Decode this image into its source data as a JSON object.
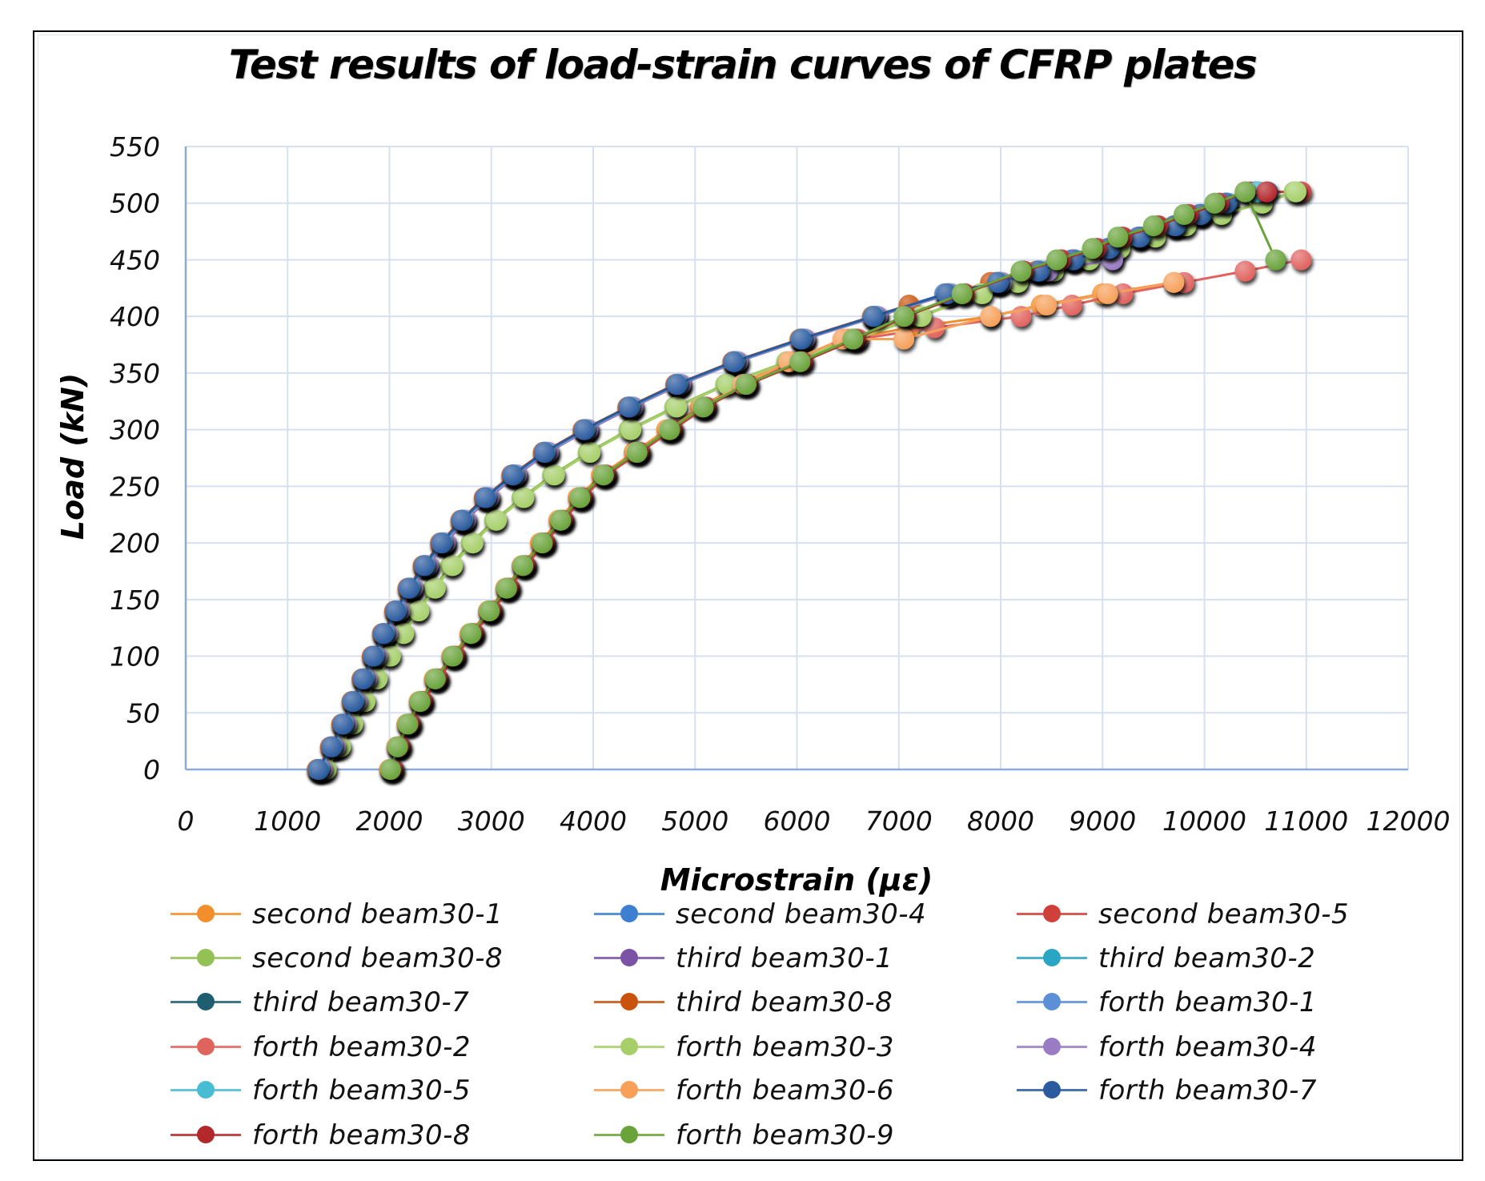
{
  "chart_data": {
    "type": "line",
    "title": "Test results of load-strain curves of CFRP plates",
    "xlabel": "Microstrain (με)",
    "ylabel": "Load (kN)",
    "xlim": [
      0,
      12000
    ],
    "ylim": [
      0,
      550
    ],
    "xticks": [
      0,
      1000,
      2000,
      3000,
      4000,
      5000,
      6000,
      7000,
      8000,
      9000,
      10000,
      11000,
      12000
    ],
    "yticks": [
      0,
      50,
      100,
      150,
      200,
      250,
      300,
      350,
      400,
      450,
      500,
      550
    ],
    "grid": true,
    "legend_position": "bottom",
    "markers": "circle",
    "series": [
      {
        "name": "second beam30-1",
        "color": "#f28e2b",
        "x": [
          2000,
          2070,
          2170,
          2290,
          2440,
          2610,
          2790,
          2970,
          3140,
          3300,
          3480,
          3660,
          3850,
          4080,
          4400,
          4720,
          5050,
          5450,
          5900,
          6500,
          7100,
          7900,
          8400,
          9000,
          9700
        ],
        "y": [
          0,
          20,
          40,
          60,
          80,
          100,
          120,
          140,
          160,
          180,
          200,
          220,
          240,
          260,
          280,
          300,
          320,
          340,
          360,
          380,
          390,
          400,
          410,
          420,
          430
        ]
      },
      {
        "name": "second beam30-4",
        "color": "#3d7fd1",
        "x": [
          1300,
          1430,
          1540,
          1640,
          1740,
          1840,
          1940,
          2060,
          2190,
          2340,
          2510,
          2710,
          2940,
          3210,
          3520,
          3910,
          4350,
          4820,
          5380,
          6040,
          6750,
          7450,
          7950,
          8350,
          8700,
          9050,
          9350,
          9700,
          9950,
          10200,
          10500
        ],
        "y": [
          0,
          20,
          40,
          60,
          80,
          100,
          120,
          140,
          160,
          180,
          200,
          220,
          240,
          260,
          280,
          300,
          320,
          340,
          360,
          380,
          400,
          420,
          430,
          440,
          450,
          460,
          470,
          480,
          490,
          500,
          510
        ]
      },
      {
        "name": "second beam30-5",
        "color": "#d0403b",
        "x": [
          2040,
          2110,
          2210,
          2330,
          2480,
          2650,
          2830,
          3010,
          3180,
          3340,
          3530,
          3710,
          3900,
          4130,
          4460,
          4780,
          5110,
          5520,
          6060,
          6580,
          7080,
          7650,
          8230,
          8600,
          8950,
          9200,
          9550,
          9850,
          10150,
          10450,
          10950
        ],
        "y": [
          0,
          20,
          40,
          60,
          80,
          100,
          120,
          140,
          160,
          180,
          200,
          220,
          240,
          260,
          280,
          300,
          320,
          340,
          360,
          380,
          400,
          420,
          440,
          450,
          460,
          470,
          480,
          490,
          500,
          510,
          510
        ]
      },
      {
        "name": "second beam30-8",
        "color": "#94c156",
        "x": [
          1360,
          1500,
          1620,
          1740,
          1860,
          1990,
          2120,
          2270,
          2430,
          2600,
          2800,
          3030,
          3300,
          3600,
          3950,
          4350,
          4800,
          5300,
          5900,
          6550,
          7200,
          7800,
          8150,
          8500,
          8850,
          9150,
          9500,
          9800,
          10150,
          10550,
          10880
        ],
        "y": [
          0,
          20,
          40,
          60,
          80,
          100,
          120,
          140,
          160,
          180,
          200,
          220,
          240,
          260,
          280,
          300,
          320,
          340,
          360,
          380,
          400,
          420,
          430,
          440,
          450,
          460,
          470,
          480,
          490,
          500,
          510
        ]
      },
      {
        "name": "third beam30-1",
        "color": "#7a52a6",
        "x": [
          1330,
          1460,
          1570,
          1670,
          1770,
          1870,
          1970,
          2090,
          2220,
          2370,
          2540,
          2740,
          2970,
          3240,
          3550,
          3940,
          4380,
          4850,
          5410,
          6070,
          6780,
          7500,
          8000,
          8450,
          9100
        ],
        "y": [
          0,
          20,
          40,
          60,
          80,
          100,
          120,
          140,
          160,
          180,
          200,
          220,
          240,
          260,
          280,
          300,
          320,
          340,
          360,
          380,
          400,
          420,
          430,
          440,
          450
        ]
      },
      {
        "name": "third beam30-2",
        "color": "#2aa5c4",
        "x": [
          1310,
          1440,
          1550,
          1650,
          1750,
          1850,
          1950,
          2070,
          2200,
          2350,
          2520,
          2720,
          2950,
          3220,
          3530,
          3920,
          4360,
          4830,
          5390,
          6050,
          6760,
          7480,
          7980,
          8380,
          8720,
          9070,
          9370,
          9720,
          9970,
          10220,
          10520
        ],
        "y": [
          0,
          20,
          40,
          60,
          80,
          100,
          120,
          140,
          160,
          180,
          200,
          220,
          240,
          260,
          280,
          300,
          320,
          340,
          360,
          380,
          400,
          420,
          430,
          440,
          450,
          460,
          470,
          480,
          490,
          500,
          510
        ]
      },
      {
        "name": "third beam30-7",
        "color": "#1f5e70",
        "x": [
          1300,
          1430,
          1540,
          1640,
          1740,
          1840,
          1940,
          2060,
          2190,
          2340,
          2510,
          2710,
          2940,
          3210,
          3520,
          3910,
          4350,
          4820,
          5380,
          6040,
          6750,
          7470,
          7970,
          8370,
          8710,
          9060,
          9360,
          9710,
          9960,
          10210,
          10510
        ],
        "y": [
          0,
          20,
          40,
          60,
          80,
          100,
          120,
          140,
          160,
          180,
          200,
          220,
          240,
          260,
          280,
          300,
          320,
          340,
          360,
          380,
          400,
          420,
          430,
          440,
          450,
          460,
          470,
          480,
          490,
          500,
          510
        ]
      },
      {
        "name": "third beam30-8",
        "color": "#c9520d",
        "x": [
          1290,
          1420,
          1530,
          1630,
          1730,
          1830,
          1930,
          2050,
          2180,
          2330,
          2500,
          2700,
          2930,
          3200,
          3510,
          3900,
          4340,
          4810,
          5370,
          6030,
          6740,
          7100,
          7500,
          7900,
          8350
        ],
        "y": [
          0,
          20,
          40,
          60,
          80,
          100,
          120,
          140,
          160,
          180,
          200,
          220,
          240,
          260,
          280,
          300,
          320,
          340,
          360,
          380,
          400,
          410,
          420,
          430,
          440
        ]
      },
      {
        "name": "forth beam30-1",
        "color": "#5b8fd6",
        "x": [
          1320,
          1450,
          1560,
          1660,
          1760,
          1860,
          1960,
          2080,
          2210,
          2360,
          2530,
          2730,
          2960,
          3230,
          3540,
          3930,
          4370,
          4840,
          5400,
          6060,
          6770,
          7490,
          7990,
          8390,
          8730,
          9080,
          9380,
          9730,
          9980,
          10230,
          10530
        ],
        "y": [
          0,
          20,
          40,
          60,
          80,
          100,
          120,
          140,
          160,
          180,
          200,
          220,
          240,
          260,
          280,
          300,
          320,
          340,
          360,
          380,
          400,
          420,
          430,
          440,
          450,
          460,
          470,
          480,
          490,
          500,
          510
        ]
      },
      {
        "name": "forth beam30-2",
        "color": "#e0645e",
        "x": [
          2030,
          2100,
          2200,
          2320,
          2470,
          2640,
          2820,
          3000,
          3170,
          3330,
          3520,
          3700,
          3890,
          4120,
          4450,
          4770,
          5100,
          5500,
          5960,
          6600,
          7350,
          8200,
          8700,
          9200,
          9800,
          10400,
          10950
        ],
        "y": [
          0,
          20,
          40,
          60,
          80,
          100,
          120,
          140,
          160,
          180,
          200,
          220,
          240,
          260,
          280,
          300,
          320,
          340,
          360,
          380,
          390,
          400,
          410,
          420,
          430,
          440,
          450
        ]
      },
      {
        "name": "forth beam30-3",
        "color": "#a6cf6a",
        "x": [
          1380,
          1520,
          1640,
          1760,
          1880,
          2010,
          2140,
          2290,
          2450,
          2620,
          2820,
          3050,
          3320,
          3620,
          3970,
          4370,
          4820,
          5320,
          5920,
          6570,
          7220,
          7820,
          8170,
          8520,
          8870,
          9170,
          9520,
          9820,
          10170,
          10570,
          10900
        ],
        "y": [
          0,
          20,
          40,
          60,
          80,
          100,
          120,
          140,
          160,
          180,
          200,
          220,
          240,
          260,
          280,
          300,
          320,
          340,
          360,
          380,
          400,
          420,
          430,
          440,
          450,
          460,
          470,
          480,
          490,
          500,
          510
        ]
      },
      {
        "name": "forth beam30-4",
        "color": "#9a7cc4",
        "x": [
          1340,
          1470,
          1580,
          1680,
          1780,
          1880,
          1980,
          2100,
          2230,
          2380,
          2550,
          2750,
          2980,
          3250,
          3560,
          3950,
          4390,
          4860,
          5420,
          6080,
          6790,
          7510,
          8010,
          8460,
          9100
        ],
        "y": [
          0,
          20,
          40,
          60,
          80,
          100,
          120,
          140,
          160,
          180,
          200,
          220,
          240,
          260,
          280,
          300,
          320,
          340,
          360,
          380,
          400,
          420,
          430,
          440,
          450
        ]
      },
      {
        "name": "forth beam30-5",
        "color": "#48bcd3",
        "x": [
          1310,
          1440,
          1550,
          1650,
          1750,
          1850,
          1950,
          2070,
          2200,
          2350,
          2520,
          2720,
          2950,
          3220,
          3530,
          3920,
          4360,
          4830,
          5390,
          6050,
          6760,
          7480,
          7980,
          8380,
          8720,
          9070,
          9370,
          9720,
          9970,
          10220,
          10520
        ],
        "y": [
          0,
          20,
          40,
          60,
          80,
          100,
          120,
          140,
          160,
          180,
          200,
          220,
          240,
          260,
          280,
          300,
          320,
          340,
          360,
          380,
          400,
          420,
          430,
          440,
          450,
          460,
          470,
          480,
          490,
          500,
          510
        ]
      },
      {
        "name": "forth beam30-6",
        "color": "#f6a05a",
        "x": [
          2010,
          2080,
          2180,
          2300,
          2450,
          2620,
          2800,
          2980,
          3150,
          3310,
          3500,
          3680,
          3870,
          4100,
          4420,
          4740,
          5070,
          5470,
          5920,
          6450,
          7050,
          7900,
          8450,
          9050,
          9700
        ],
        "y": [
          0,
          20,
          40,
          60,
          80,
          100,
          120,
          140,
          160,
          180,
          200,
          220,
          240,
          260,
          280,
          300,
          320,
          340,
          360,
          380,
          380,
          400,
          410,
          420,
          430
        ]
      },
      {
        "name": "forth beam30-7",
        "color": "#2b5a9e",
        "x": [
          1300,
          1430,
          1540,
          1640,
          1740,
          1840,
          1940,
          2060,
          2190,
          2340,
          2510,
          2710,
          2940,
          3210,
          3520,
          3910,
          4350,
          4820,
          5380,
          6040,
          6750,
          7470,
          7970,
          8370,
          8710,
          9060,
          9360,
          9710,
          9960,
          10210,
          10620
        ],
        "y": [
          0,
          20,
          40,
          60,
          80,
          100,
          120,
          140,
          160,
          180,
          200,
          220,
          240,
          260,
          280,
          300,
          320,
          340,
          360,
          380,
          400,
          420,
          430,
          440,
          450,
          460,
          470,
          480,
          490,
          500,
          510
        ]
      },
      {
        "name": "forth beam30-8",
        "color": "#b3282a",
        "x": [
          2020,
          2090,
          2190,
          2310,
          2460,
          2630,
          2810,
          2990,
          3160,
          3320,
          3510,
          3690,
          3880,
          4110,
          4440,
          4760,
          5090,
          5510,
          6050,
          6570,
          7070,
          7640,
          8220,
          8590,
          8940,
          9190,
          9540,
          9840,
          10140,
          10400,
          10610
        ],
        "y": [
          0,
          20,
          40,
          60,
          80,
          100,
          120,
          140,
          160,
          180,
          200,
          220,
          240,
          260,
          280,
          300,
          320,
          340,
          360,
          380,
          400,
          420,
          440,
          450,
          460,
          470,
          480,
          490,
          500,
          510,
          510
        ]
      },
      {
        "name": "forth beam30-9",
        "color": "#6aa33a",
        "x": [
          2010,
          2080,
          2180,
          2300,
          2450,
          2620,
          2800,
          2980,
          3150,
          3310,
          3500,
          3680,
          3870,
          4100,
          4430,
          4750,
          5080,
          5500,
          6030,
          6550,
          7050,
          7620,
          8200,
          8550,
          8900,
          9150,
          9500,
          9800,
          10100,
          10400,
          10700
        ],
        "y": [
          0,
          20,
          40,
          60,
          80,
          100,
          120,
          140,
          160,
          180,
          200,
          220,
          240,
          260,
          280,
          300,
          320,
          340,
          360,
          380,
          400,
          420,
          440,
          450,
          460,
          470,
          480,
          490,
          500,
          510,
          450
        ]
      }
    ]
  }
}
